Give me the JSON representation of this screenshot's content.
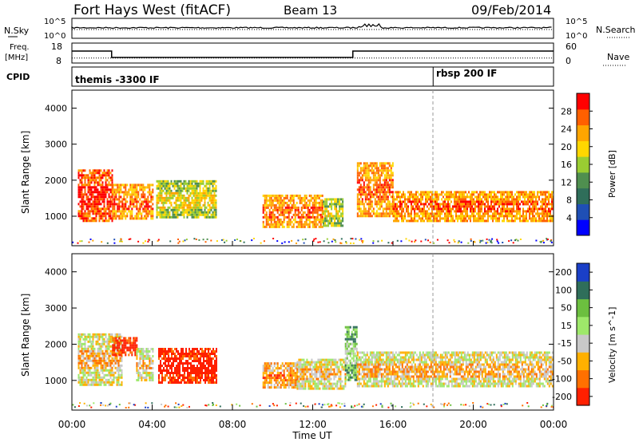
{
  "header": {
    "station": "Fort Hays West (fitACF)",
    "beam": "Beam 13",
    "date": "09/Feb/2014"
  },
  "noise_panel": {
    "left_label": "N.Sky",
    "right_label": "N.Search",
    "ticks_left": [
      "10^5",
      "10^0"
    ],
    "ticks_right": [
      "10^5",
      "10^0"
    ]
  },
  "freq_panel": {
    "left_label_1": "Freq.",
    "left_label_2": "[MHz]",
    "ticks_left": [
      "18",
      "8"
    ],
    "right_label": "Nave",
    "ticks_right": [
      "60",
      "0"
    ],
    "freq_steps": [
      {
        "t0": 0,
        "t1": 1.98,
        "v": 14.0
      },
      {
        "t0": 1.98,
        "t1": 14.0,
        "v": 10.8
      },
      {
        "t0": 14.0,
        "t1": 24.0,
        "v": 14.0
      }
    ],
    "nave_level": 10.5
  },
  "cpid_panel": {
    "label": "CPID",
    "segments": [
      {
        "start": 0,
        "text": "themis -3300 IF"
      },
      {
        "start": 18.0,
        "text": "rbsp 200 IF"
      }
    ]
  },
  "power_panel": {
    "ylabel": "Slant Range [km]",
    "yticks": [
      "1000",
      "2000",
      "3000",
      "4000"
    ],
    "colorbar_label": "Power [dB]",
    "colorbar_ticks": [
      "4",
      "8",
      "12",
      "16",
      "20",
      "24",
      "28"
    ],
    "colors": [
      "#0000ff",
      "#1f4fb5",
      "#2f6e5a",
      "#4f8f4f",
      "#9acd32",
      "#ffd700",
      "#ffa500",
      "#ff6000",
      "#ff0000"
    ]
  },
  "velocity_panel": {
    "ylabel": "Slant Range [km]",
    "yticks": [
      "1000",
      "2000",
      "3000",
      "4000"
    ],
    "colorbar_label": "Velocity [m s^-1]",
    "colorbar_ticks": [
      "200",
      "100",
      "50",
      "15",
      "-15",
      "-50",
      "-100",
      "-200"
    ],
    "colors": [
      "#1a3fc7",
      "#2f6e5a",
      "#6cbf3f",
      "#9ee86a",
      "#c8c8c8",
      "#ffb000",
      "#ff7000",
      "#ff2000"
    ]
  },
  "time_axis": {
    "xlabel": "Time UT",
    "ticks": [
      "00:00",
      "04:00",
      "08:00",
      "12:00",
      "16:00",
      "20:00",
      "00:00"
    ]
  },
  "chart_data": {
    "type": "heatmap",
    "x_unit": "hours UT",
    "xlim": [
      0,
      24
    ],
    "ylim_km": [
      180,
      4500
    ],
    "power_regions": [
      {
        "t0": 0.3,
        "t1": 2.0,
        "r0": 850,
        "r1": 2300,
        "level": 7
      },
      {
        "t0": 2.0,
        "t1": 4.0,
        "r0": 950,
        "r1": 1900,
        "level": 6
      },
      {
        "t0": 4.2,
        "t1": 7.2,
        "r0": 950,
        "r1": 2000,
        "level": 4
      },
      {
        "t0": 9.5,
        "t1": 12.5,
        "r0": 700,
        "r1": 1600,
        "level": 6
      },
      {
        "t0": 12.5,
        "t1": 13.5,
        "r0": 750,
        "r1": 1500,
        "level": 4
      },
      {
        "t0": 14.2,
        "t1": 16.0,
        "r0": 1000,
        "r1": 2500,
        "level": 6
      },
      {
        "t0": 16.0,
        "t1": 24.0,
        "r0": 850,
        "r1": 1700,
        "level": 6
      }
    ],
    "velocity_regions": [
      {
        "t0": 0.3,
        "t1": 2.5,
        "r0": 900,
        "r1": 2300,
        "level": 4
      },
      {
        "t0": 2.0,
        "t1": 3.2,
        "r0": 1700,
        "r1": 2200,
        "level": 7
      },
      {
        "t0": 3.2,
        "t1": 4.0,
        "r0": 1000,
        "r1": 1900,
        "level": 4
      },
      {
        "t0": 4.3,
        "t1": 7.2,
        "r0": 950,
        "r1": 1900,
        "level": 7
      },
      {
        "t0": 9.5,
        "t1": 11.2,
        "r0": 800,
        "r1": 1500,
        "level": 5
      },
      {
        "t0": 11.2,
        "t1": 13.6,
        "r0": 800,
        "r1": 1600,
        "level": 4
      },
      {
        "t0": 13.6,
        "t1": 14.2,
        "r0": 1000,
        "r1": 2500,
        "level": 2
      },
      {
        "t0": 14.2,
        "t1": 24.0,
        "r0": 850,
        "r1": 1800,
        "level": 4
      }
    ]
  }
}
